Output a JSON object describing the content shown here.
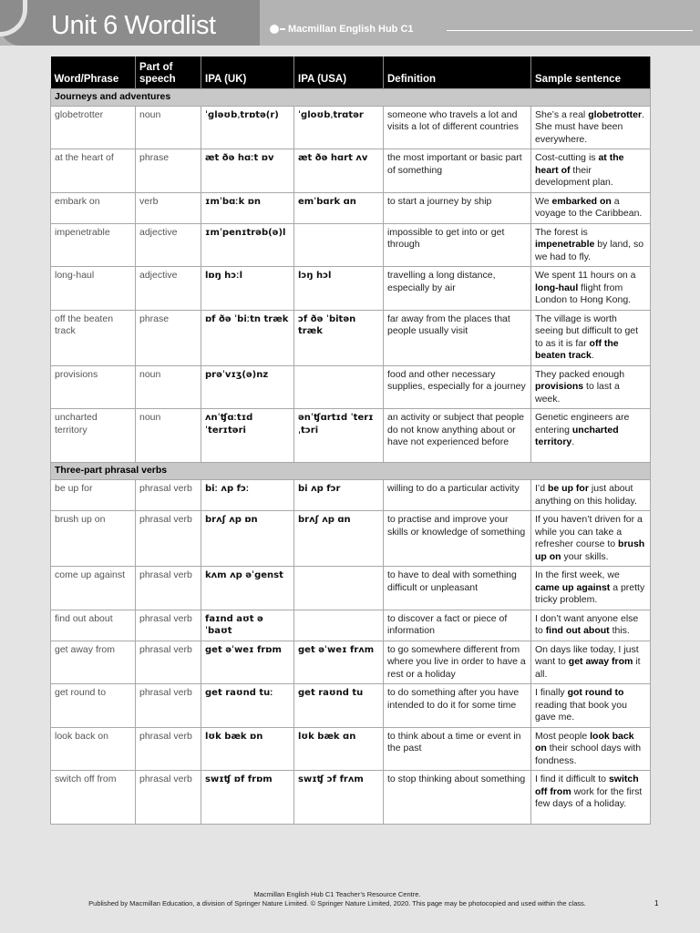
{
  "header": {
    "title": "Unit 6 Wordlist",
    "subtitle": "Macmillan English Hub C1"
  },
  "columns": [
    "Word/Phrase",
    "Part of speech",
    "IPA (UK)",
    "IPA (USA)",
    "Definition",
    "Sample sentence"
  ],
  "sections": [
    {
      "title": "Journeys and adventures",
      "rows": [
        {
          "word": "globetrotter",
          "pos": "noun",
          "uk": "ˈɡləʊbˌtrɒtə(r)",
          "us": "ˈɡloʊbˌtrɑtər",
          "def": "someone who travels a lot and visits a lot of different countries",
          "pre": "She’s a real ",
          "bold": "globetrotter",
          "post": ". She must have been everywhere."
        },
        {
          "word": "at the heart of",
          "pos": "phrase",
          "uk": "æt ðə hɑːt ɒv",
          "us": "æt ðə hɑrt ʌv",
          "def": "the most important or basic part of something",
          "pre": "Cost-cutting is ",
          "bold": "at the heart of",
          "post": " their development plan."
        },
        {
          "word": "embark on",
          "pos": "verb",
          "uk": "ɪmˈbɑːk ɒn",
          "us": "emˈbɑrk ɑn",
          "def": "to start a journey by ship",
          "pre": "We ",
          "bold": "embarked on",
          "post": " a voyage to the Caribbean."
        },
        {
          "word": "impenetrable",
          "pos": "adjective",
          "uk": "ɪmˈpenɪtrəb(ə)l",
          "us": "",
          "def": "impossible to get into or get through",
          "pre": "The forest is ",
          "bold": "impenetrable",
          "post": " by land, so we had to fly."
        },
        {
          "word": "long-haul",
          "pos": "adjective",
          "uk": "lɒŋ hɔːl",
          "us": "lɔŋ hɔl",
          "def": "travelling a long distance, especially by air",
          "pre": "We spent 11 hours on a ",
          "bold": "long-haul",
          "post": " flight from London to Hong Kong."
        },
        {
          "word": "off the beaten track",
          "pos": "phrase",
          "uk": "ɒf ðə ˈbiːtn træk",
          "us": "ɔf ðə ˈbitən træk",
          "def": "far away from the places that people usually visit",
          "pre": "The village is worth seeing but difficult to get to as it is far ",
          "bold": "off the beaten track",
          "post": "."
        },
        {
          "word": "provisions",
          "pos": "noun",
          "uk": "prəˈvɪʒ(ə)nz",
          "us": "",
          "def": "food and other necessary supplies, especially for a journey",
          "pre": "They packed enough ",
          "bold": "provisions",
          "post": " to last a week."
        },
        {
          "word": "uncharted territory",
          "pos": "noun",
          "uk": "ʌnˈʧɑːtɪd ˈterɪtəri",
          "us": "ənˈʧɑrtɪd ˈterɪˌtɔri",
          "def": "an activity or subject that people do not know anything about or have not experienced before",
          "pre": "Genetic engineers are entering ",
          "bold": "uncharted territory",
          "post": "."
        }
      ]
    },
    {
      "title": "Three-part phrasal verbs",
      "rows": [
        {
          "word": "be up for",
          "pos": "phrasal verb",
          "uk": "biː ʌp fɔː",
          "us": "bi ʌp fɔr",
          "def": "willing to do a particular activity",
          "pre": "I’d ",
          "bold": "be up for",
          "post": " just about anything on this holiday."
        },
        {
          "word": "brush up on",
          "pos": "phrasal verb",
          "uk": "brʌʃ ʌp ɒn",
          "us": "brʌʃ ʌp ɑn",
          "def": "to practise and improve your skills or knowledge of something",
          "pre": "If you haven’t driven for a while you can take a refresher course to ",
          "bold": "brush up on",
          "post": " your skills."
        },
        {
          "word": "come up against",
          "pos": "phrasal verb",
          "uk": "kʌm ʌp əˈgenst",
          "us": "",
          "def": "to have to deal with something difficult or unpleasant",
          "pre": "In the first week, we ",
          "bold": "came up against",
          "post": " a pretty tricky problem."
        },
        {
          "word": "find out about",
          "pos": "phrasal verb",
          "uk": "faɪnd aʊt əˈbaʊt",
          "us": "",
          "def": "to discover a fact or piece of information",
          "pre": "I don’t want anyone else to ",
          "bold": "find out about",
          "post": " this."
        },
        {
          "word": "get away from",
          "pos": "phrasal verb",
          "uk": "get əˈweɪ frɒm",
          "us": "get əˈweɪ frʌm",
          "def": "to go somewhere different from where you live in order to have a rest or a holiday",
          "pre": "On days like today, I just want to ",
          "bold": "get away from",
          "post": " it all."
        },
        {
          "word": "get round to",
          "pos": "phrasal verb",
          "uk": "get raʊnd tuː",
          "us": "get raʊnd tu",
          "def": "to do something after you have intended to do it for some time",
          "pre": "I finally ",
          "bold": "got round to",
          "post": " reading that book you gave me."
        },
        {
          "word": "look back on",
          "pos": "phrasal verb",
          "uk": "lʊk bæk ɒn",
          "us": "lʊk bæk ɑn",
          "def": "to think about a time or event in the past",
          "pre": "Most people ",
          "bold": "look back on",
          "post": " their school days with fondness."
        },
        {
          "word": "switch off from",
          "pos": "phrasal verb",
          "uk": "swɪʧ ɒf frɒm",
          "us": "swɪʧ ɔf frʌm",
          "def": "to stop thinking about something",
          "pre": "I find it difficult to ",
          "bold": "switch off from",
          "post": " work for the first few days of a holiday."
        }
      ]
    }
  ],
  "footer": {
    "line1": "Macmillan English Hub C1 Teacher’s Resource Centre.",
    "line2": "Published by Macmillan Education, a division of Springer Nature Limited. © Springer Nature Limited, 2020. This page may be photocopied and used within the class.",
    "page": "1"
  }
}
